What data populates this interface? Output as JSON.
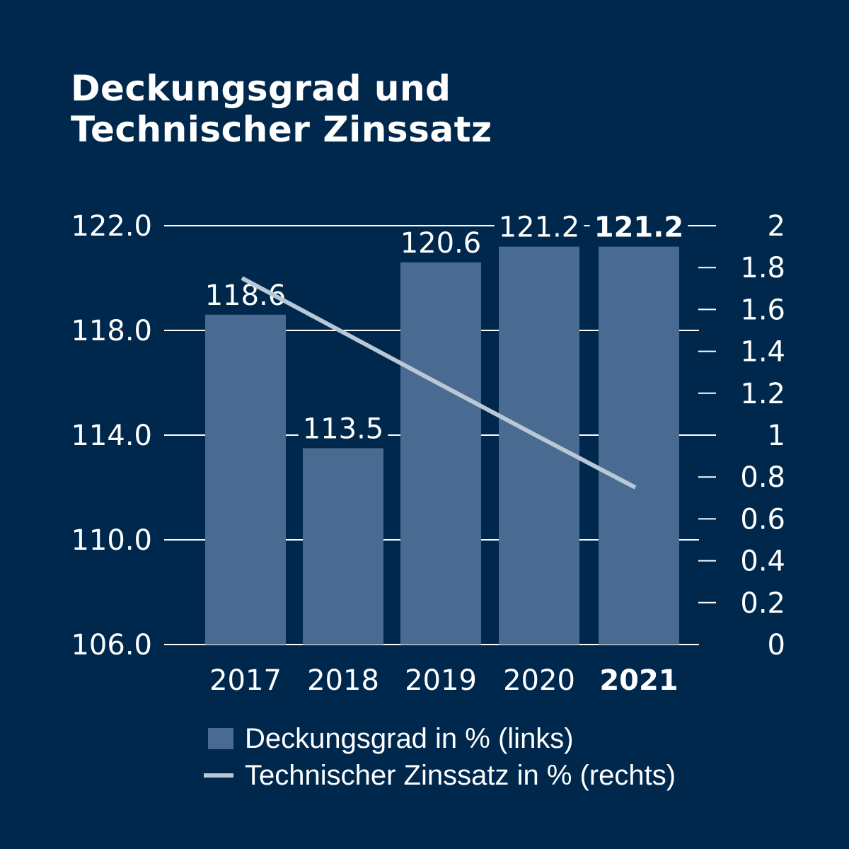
{
  "title": {
    "line1": "Deckungsgrad und",
    "line2": "Technischer Zinssatz"
  },
  "colors": {
    "background": "#00284d",
    "bar": "#4a6b91",
    "line": "#b9c8d6",
    "grid": "#ffffff"
  },
  "chart_data": {
    "type": "bar",
    "title": "Deckungsgrad und Technischer Zinssatz",
    "categories": [
      "2017",
      "2018",
      "2019",
      "2020",
      "2021"
    ],
    "highlight_category": "2021",
    "series": [
      {
        "name": "Deckungsgrad in % (links)",
        "type": "bar",
        "axis": "left",
        "values": [
          118.6,
          113.5,
          120.6,
          121.2,
          121.2
        ],
        "labels": [
          "118.6",
          "113.5",
          "120.6",
          "121.2",
          "121.2"
        ]
      },
      {
        "name": "Technischer Zinssatz in % (rechts)",
        "type": "line",
        "axis": "right",
        "values": [
          1.75,
          1.5,
          1.25,
          1.0,
          0.75
        ]
      }
    ],
    "y_left": {
      "ticks": [
        106,
        110,
        114,
        118,
        122
      ],
      "tick_labels": [
        "106.0",
        "110.0",
        "114.0",
        "118.0",
        "122.0"
      ],
      "ylim": [
        106,
        122
      ]
    },
    "y_right": {
      "ticks": [
        0,
        0.2,
        0.4,
        0.6,
        0.8,
        1,
        1.2,
        1.4,
        1.6,
        1.8,
        2
      ],
      "tick_labels": [
        "0",
        "0.2",
        "0.4",
        "0.6",
        "0.8",
        "1",
        "1.2",
        "1.4",
        "1.6",
        "1.8",
        "2"
      ],
      "ylim": [
        0,
        2
      ]
    },
    "grid": true,
    "legend_position": "bottom"
  },
  "legend": {
    "bar_label": "Deckungsgrad in % (links)",
    "line_label": "Technischer Zinssatz in % (rechts)"
  }
}
